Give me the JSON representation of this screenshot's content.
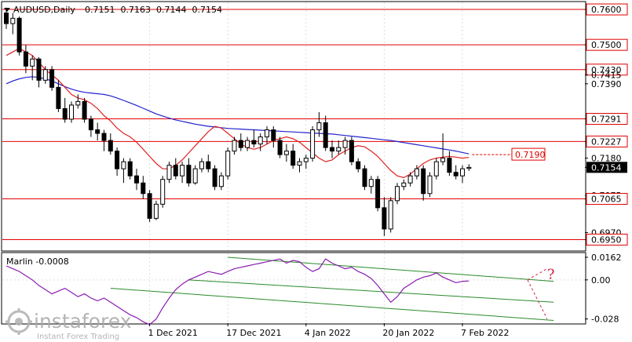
{
  "header": {
    "symbol_label": "AUDUSD,Daily",
    "ohlc_label": "0.7151  0.7163  0.7144  0.7154"
  },
  "colors": {
    "background": "#ffffff",
    "grid": "#dddddd",
    "level_line": "#e00000",
    "ma_blue": "#2222cc",
    "ma_red": "#e02020",
    "marlin": "#8a1cb0",
    "channel": "#2a8a2a",
    "projection": "#d02040",
    "axis_text": "#000000"
  },
  "chart_data": [
    {
      "type": "candlestick",
      "title": "AUDUSD,Daily",
      "ylim": [
        0.692,
        0.762
      ],
      "horizontal_levels": [
        0.76,
        0.75,
        0.743,
        0.7291,
        0.7227,
        0.7065,
        0.695
      ],
      "axis_price_labels": [
        {
          "text": "0.7600",
          "value": 0.76,
          "boxed": true
        },
        {
          "text": "0.7500",
          "value": 0.75,
          "boxed": true
        },
        {
          "text": "0.7430",
          "value": 0.743,
          "boxed": true
        },
        {
          "text": "0.7415",
          "value": 0.7415,
          "boxed": false
        },
        {
          "text": "0.7390",
          "value": 0.739,
          "boxed": false
        },
        {
          "text": "0.7291",
          "value": 0.7291,
          "boxed": true
        },
        {
          "text": "0.7227",
          "value": 0.7227,
          "boxed": true
        },
        {
          "text": "0.7180",
          "value": 0.718,
          "boxed": false
        },
        {
          "text": "0.7154",
          "value": 0.7154,
          "boxed": true,
          "current": true
        },
        {
          "text": "0.7075",
          "value": 0.7075,
          "boxed": false
        },
        {
          "text": "0.7065",
          "value": 0.7065,
          "boxed": true
        },
        {
          "text": "0.6970",
          "value": 0.697,
          "boxed": false
        },
        {
          "text": "0.6950",
          "value": 0.695,
          "boxed": true
        }
      ],
      "annotation": {
        "text": "0.7190",
        "value": 0.719
      },
      "candles": [
        [
          0.759,
          0.7605,
          0.7545,
          0.756
        ],
        [
          0.756,
          0.759,
          0.753,
          0.7575
        ],
        [
          0.7575,
          0.758,
          0.747,
          0.748
        ],
        [
          0.748,
          0.75,
          0.742,
          0.744
        ],
        [
          0.744,
          0.747,
          0.74,
          0.746
        ],
        [
          0.746,
          0.7465,
          0.738,
          0.74
        ],
        [
          0.74,
          0.744,
          0.739,
          0.743
        ],
        [
          0.743,
          0.744,
          0.737,
          0.738
        ],
        [
          0.738,
          0.74,
          0.731,
          0.732
        ],
        [
          0.732,
          0.735,
          0.728,
          0.729
        ],
        [
          0.729,
          0.734,
          0.728,
          0.733
        ],
        [
          0.733,
          0.736,
          0.732,
          0.734
        ],
        [
          0.734,
          0.735,
          0.728,
          0.729
        ],
        [
          0.729,
          0.73,
          0.724,
          0.726
        ],
        [
          0.726,
          0.728,
          0.723,
          0.725
        ],
        [
          0.725,
          0.726,
          0.72,
          0.723
        ],
        [
          0.723,
          0.725,
          0.719,
          0.72
        ],
        [
          0.72,
          0.721,
          0.713,
          0.715
        ],
        [
          0.715,
          0.718,
          0.711,
          0.717
        ],
        [
          0.717,
          0.718,
          0.712,
          0.713
        ],
        [
          0.713,
          0.715,
          0.709,
          0.711
        ],
        [
          0.711,
          0.713,
          0.7065,
          0.708
        ],
        [
          0.708,
          0.709,
          0.7,
          0.701
        ],
        [
          0.701,
          0.706,
          0.7005,
          0.705
        ],
        [
          0.705,
          0.713,
          0.704,
          0.712
        ],
        [
          0.712,
          0.717,
          0.711,
          0.716
        ],
        [
          0.716,
          0.718,
          0.712,
          0.713
        ],
        [
          0.713,
          0.717,
          0.711,
          0.716
        ],
        [
          0.716,
          0.718,
          0.71,
          0.711
        ],
        [
          0.711,
          0.716,
          0.7105,
          0.715
        ],
        [
          0.715,
          0.718,
          0.714,
          0.717
        ],
        [
          0.717,
          0.719,
          0.714,
          0.715
        ],
        [
          0.715,
          0.716,
          0.709,
          0.71
        ],
        [
          0.71,
          0.714,
          0.709,
          0.713
        ],
        [
          0.713,
          0.721,
          0.712,
          0.72
        ],
        [
          0.72,
          0.724,
          0.719,
          0.723
        ],
        [
          0.723,
          0.725,
          0.72,
          0.721
        ],
        [
          0.721,
          0.724,
          0.72,
          0.723
        ],
        [
          0.723,
          0.726,
          0.721,
          0.722
        ],
        [
          0.722,
          0.725,
          0.72,
          0.724
        ],
        [
          0.724,
          0.727,
          0.722,
          0.726
        ],
        [
          0.726,
          0.727,
          0.721,
          0.723
        ],
        [
          0.723,
          0.724,
          0.718,
          0.719
        ],
        [
          0.719,
          0.722,
          0.717,
          0.72
        ],
        [
          0.72,
          0.722,
          0.715,
          0.716
        ],
        [
          0.716,
          0.718,
          0.714,
          0.717
        ],
        [
          0.717,
          0.719,
          0.715,
          0.718
        ],
        [
          0.718,
          0.727,
          0.717,
          0.726
        ],
        [
          0.726,
          0.731,
          0.724,
          0.728
        ],
        [
          0.728,
          0.73,
          0.72,
          0.721
        ],
        [
          0.721,
          0.723,
          0.718,
          0.72
        ],
        [
          0.72,
          0.723,
          0.719,
          0.721
        ],
        [
          0.721,
          0.724,
          0.719,
          0.723
        ],
        [
          0.723,
          0.724,
          0.716,
          0.717
        ],
        [
          0.717,
          0.718,
          0.714,
          0.715
        ],
        [
          0.715,
          0.716,
          0.709,
          0.71
        ],
        [
          0.71,
          0.713,
          0.708,
          0.712
        ],
        [
          0.712,
          0.713,
          0.703,
          0.704
        ],
        [
          0.704,
          0.707,
          0.696,
          0.698
        ],
        [
          0.698,
          0.707,
          0.697,
          0.706
        ],
        [
          0.706,
          0.711,
          0.705,
          0.71
        ],
        [
          0.71,
          0.712,
          0.709,
          0.711
        ],
        [
          0.711,
          0.714,
          0.71,
          0.713
        ],
        [
          0.713,
          0.716,
          0.712,
          0.715
        ],
        [
          0.715,
          0.716,
          0.706,
          0.708
        ],
        [
          0.708,
          0.714,
          0.707,
          0.713
        ],
        [
          0.713,
          0.718,
          0.712,
          0.717
        ],
        [
          0.717,
          0.725,
          0.716,
          0.718
        ],
        [
          0.718,
          0.72,
          0.713,
          0.714
        ],
        [
          0.714,
          0.716,
          0.712,
          0.713
        ],
        [
          0.713,
          0.716,
          0.711,
          0.715
        ],
        [
          0.7151,
          0.7163,
          0.7144,
          0.7154
        ]
      ],
      "ma_blue": [
        0.739,
        0.7398,
        0.7404,
        0.7408,
        0.741,
        0.7408,
        0.7404,
        0.7398,
        0.739,
        0.7382,
        0.7375,
        0.737,
        0.7366,
        0.7364,
        0.7362,
        0.736,
        0.7356,
        0.735,
        0.7343,
        0.7336,
        0.7329,
        0.7321,
        0.7313,
        0.7305,
        0.7299,
        0.7293,
        0.7288,
        0.7284,
        0.728,
        0.7276,
        0.7273,
        0.727,
        0.7268,
        0.7266,
        0.7264,
        0.7263,
        0.7262,
        0.7261,
        0.726,
        0.7259,
        0.7258,
        0.7257,
        0.7256,
        0.7255,
        0.7254,
        0.7253,
        0.7252,
        0.7251,
        0.725,
        0.7249,
        0.7248,
        0.7246,
        0.7244,
        0.7242,
        0.724,
        0.7238,
        0.7236,
        0.7234,
        0.7232,
        0.723,
        0.7227,
        0.7224,
        0.7221,
        0.7218,
        0.7215,
        0.7212,
        0.7209,
        0.7206,
        0.7203,
        0.72,
        0.7196,
        0.7192
      ],
      "ma_red": [
        0.747,
        0.748,
        0.749,
        0.748,
        0.747,
        0.745,
        0.743,
        0.7415,
        0.74,
        0.738,
        0.736,
        0.735,
        0.7345,
        0.7335,
        0.732,
        0.73,
        0.7285,
        0.7265,
        0.725,
        0.724,
        0.7225,
        0.7205,
        0.7185,
        0.7165,
        0.715,
        0.715,
        0.716,
        0.7175,
        0.7195,
        0.7215,
        0.7235,
        0.7255,
        0.727,
        0.7265,
        0.725,
        0.7235,
        0.722,
        0.721,
        0.7205,
        0.721,
        0.722,
        0.723,
        0.7235,
        0.724,
        0.7235,
        0.7225,
        0.721,
        0.7195,
        0.718,
        0.717,
        0.7175,
        0.719,
        0.72,
        0.721,
        0.7215,
        0.7212,
        0.72,
        0.7185,
        0.7165,
        0.7145,
        0.713,
        0.7125,
        0.7135,
        0.715,
        0.7165,
        0.7175,
        0.718,
        0.7183,
        0.7185,
        0.7183,
        0.718,
        0.7182
      ],
      "x_tick_labels": [
        {
          "text": "1 Dec 2021",
          "index": 22
        },
        {
          "text": "17 Dec 2021",
          "index": 34
        },
        {
          "text": "4 Jan 2022",
          "index": 46
        },
        {
          "text": "20 Jan 2022",
          "index": 58
        },
        {
          "text": "7 Feb 2022",
          "index": 70
        }
      ]
    },
    {
      "type": "line",
      "title": "Marlin -0.0008",
      "ylim": [
        -0.031,
        0.019
      ],
      "axis_labels": [
        {
          "text": "0.0162",
          "value": 0.0162
        },
        {
          "text": "0.00",
          "value": 0.0
        },
        {
          "text": "-0.028",
          "value": -0.028
        }
      ],
      "series": [
        {
          "values": [
            0.01,
            0.008,
            0.006,
            0.003,
            0.0,
            -0.004,
            -0.007,
            -0.01,
            -0.008,
            -0.006,
            -0.009,
            -0.012,
            -0.01,
            -0.013,
            -0.015,
            -0.013,
            -0.016,
            -0.019,
            -0.022,
            -0.025,
            -0.027,
            -0.03,
            -0.032,
            -0.028,
            -0.02,
            -0.013,
            -0.007,
            -0.003,
            0.0,
            0.002,
            0.004,
            0.006,
            0.005,
            0.004,
            0.006,
            0.008,
            0.009,
            0.01,
            0.011,
            0.012,
            0.013,
            0.014,
            0.015,
            0.012,
            0.014,
            0.013,
            0.009,
            0.006,
            0.008,
            0.015,
            0.012,
            0.01,
            0.008,
            0.009,
            0.006,
            0.004,
            0.001,
            -0.004,
            -0.01,
            -0.016,
            -0.012,
            -0.006,
            -0.003,
            0.0,
            0.002,
            0.003,
            0.005,
            0.002,
            0.0,
            -0.002,
            -0.001,
            -0.0008
          ]
        }
      ],
      "channel_lines": [
        {
          "from": [
            34,
            0.0162
          ],
          "to": [
            84,
            -0.001
          ]
        },
        {
          "from": [
            28,
            0.0
          ],
          "to": [
            84,
            -0.016
          ]
        },
        {
          "from": [
            16,
            -0.006
          ],
          "to": [
            84,
            -0.029
          ]
        }
      ],
      "projection_lines": [
        {
          "from": [
            80,
            0.0
          ],
          "to": [
            83,
            0.008
          ]
        },
        {
          "from": [
            80,
            0.0
          ],
          "to": [
            83,
            -0.028
          ]
        }
      ],
      "projection_mark": {
        "text": "?",
        "at": [
          83,
          0.004
        ]
      }
    }
  ],
  "watermark": {
    "brand": "instaforex",
    "tagline": "Instant Forex Trading"
  }
}
